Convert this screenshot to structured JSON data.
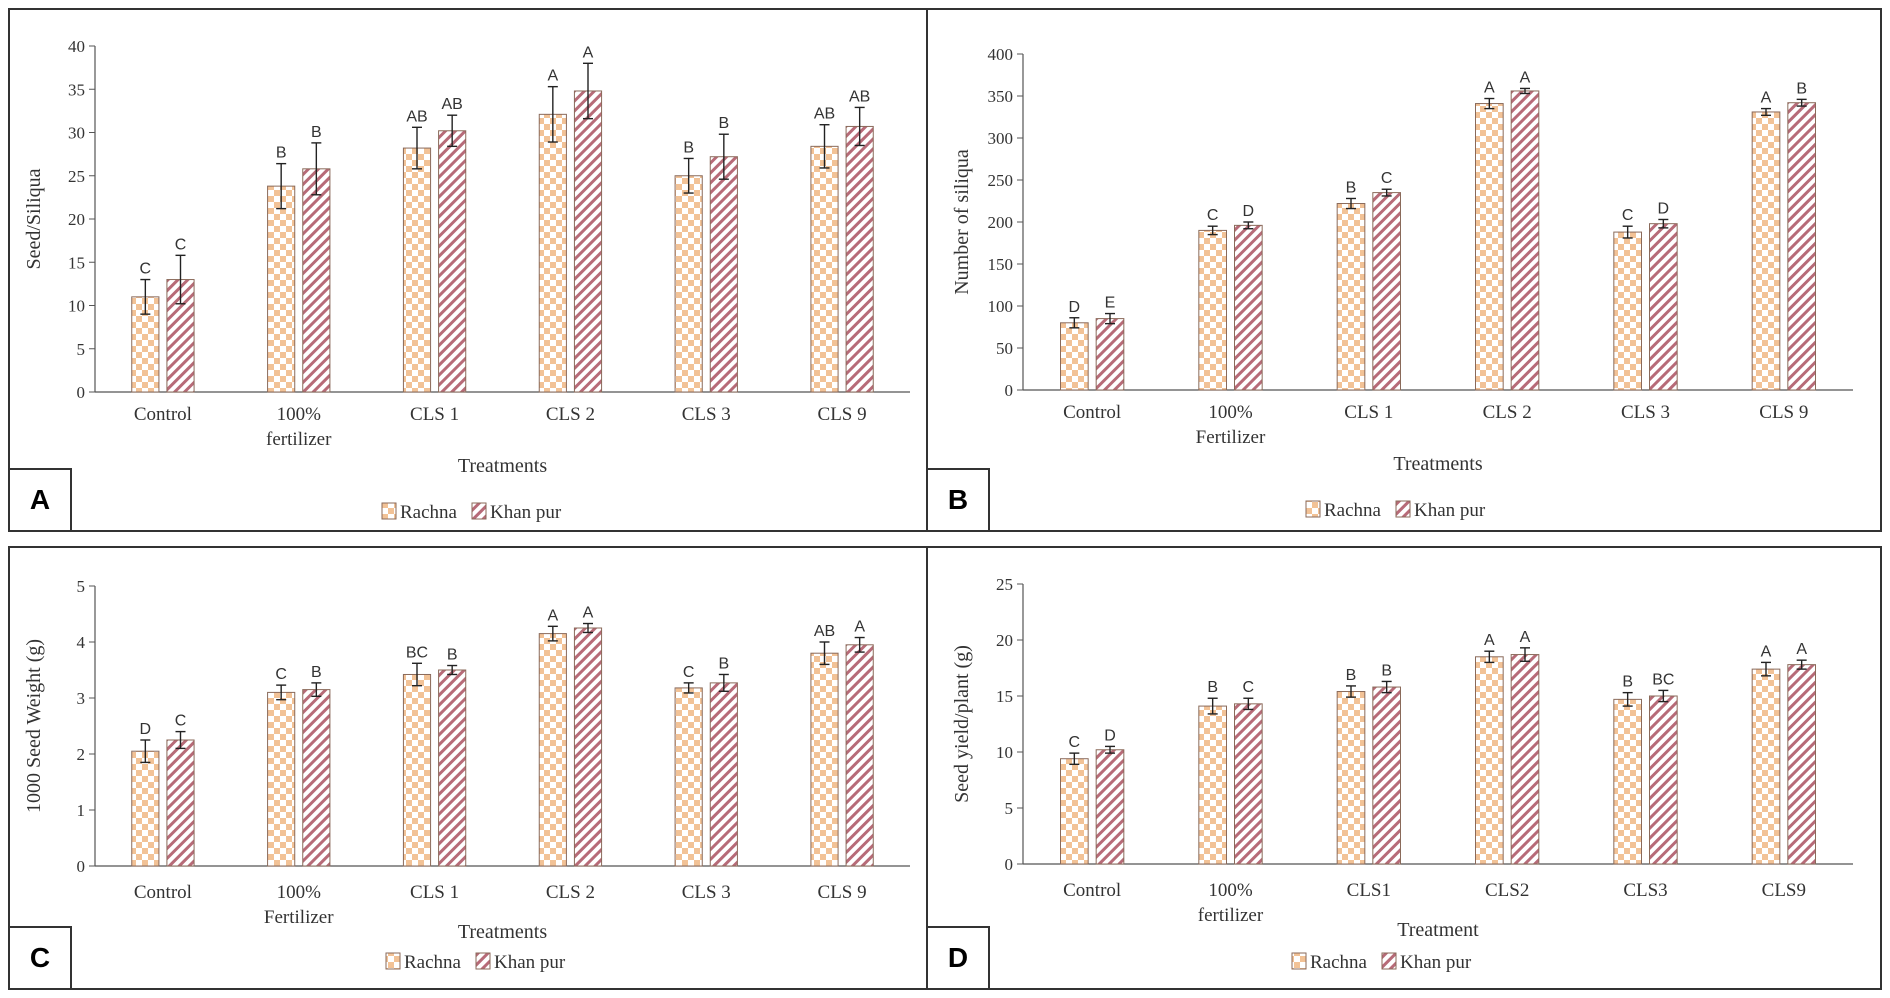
{
  "colors": {
    "rachna_check": "#f2c296",
    "khanpur_stripe": "#b76b78",
    "bar_border": "#8a6a5a",
    "axis": "#555555"
  },
  "chart_data": [
    {
      "panel": "A",
      "type": "bar",
      "ylabel": "Seed/Siliqua",
      "xlabel": "Treatments",
      "ylim": [
        0,
        40
      ],
      "ystep": 5,
      "categories": [
        "Control",
        "100%\nfertilizer",
        "CLS 1",
        "CLS 2",
        "CLS 3",
        "CLS 9"
      ],
      "legend": [
        "Rachna",
        "Khan pur"
      ],
      "series": [
        {
          "name": "Rachna",
          "values": [
            11,
            23.8,
            28.2,
            32.1,
            25,
            28.4
          ],
          "errors": [
            2,
            2.6,
            2.4,
            3.2,
            2,
            2.5
          ],
          "letters": [
            "C",
            "B",
            "AB",
            "A",
            "B",
            "AB"
          ]
        },
        {
          "name": "Khan pur",
          "values": [
            13,
            25.8,
            30.2,
            34.8,
            27.2,
            30.7
          ],
          "errors": [
            2.8,
            3,
            1.8,
            3.2,
            2.6,
            2.2
          ],
          "letters": [
            "C",
            "B",
            "AB",
            "A",
            "B",
            "AB"
          ]
        }
      ]
    },
    {
      "panel": "B",
      "type": "bar",
      "ylabel": "Number of siliqua",
      "xlabel": "Treatments",
      "ylim": [
        0,
        400
      ],
      "ystep": 50,
      "categories": [
        "Control",
        "100%\nFertilizer",
        "CLS 1",
        "CLS 2",
        "CLS 3",
        "CLS 9"
      ],
      "legend": [
        "Rachna",
        "Khan pur"
      ],
      "series": [
        {
          "name": "Rachna",
          "values": [
            80,
            190,
            222,
            341,
            188,
            331
          ],
          "errors": [
            6,
            5,
            6,
            6,
            7,
            4
          ],
          "letters": [
            "D",
            "C",
            "B",
            "A",
            "C",
            "A"
          ]
        },
        {
          "name": "Khan pur",
          "values": [
            85,
            196,
            235,
            356,
            198,
            342
          ],
          "errors": [
            6,
            4,
            4,
            3,
            5,
            4
          ],
          "letters": [
            "E",
            "D",
            "C",
            "A",
            "D",
            "B"
          ]
        }
      ]
    },
    {
      "panel": "C",
      "type": "bar",
      "ylabel": "1000 Seed Weight (g)",
      "xlabel": "Treatments",
      "ylim": [
        0,
        5
      ],
      "ystep": 1,
      "categories": [
        "Control",
        "100%\nFertilizer",
        "CLS 1",
        "CLS 2",
        "CLS 3",
        "CLS 9"
      ],
      "legend": [
        "Rachna",
        "Khan pur"
      ],
      "series": [
        {
          "name": "Rachna",
          "values": [
            2.05,
            3.1,
            3.42,
            4.15,
            3.18,
            3.8
          ],
          "errors": [
            0.2,
            0.13,
            0.2,
            0.13,
            0.09,
            0.2
          ],
          "letters": [
            "D",
            "C",
            "BC",
            "A",
            "C",
            "AB"
          ]
        },
        {
          "name": "Khan pur",
          "values": [
            2.25,
            3.15,
            3.5,
            4.25,
            3.27,
            3.95
          ],
          "errors": [
            0.15,
            0.12,
            0.08,
            0.08,
            0.15,
            0.13
          ],
          "letters": [
            "C",
            "B",
            "B",
            "A",
            "B",
            "A"
          ]
        }
      ]
    },
    {
      "panel": "D",
      "type": "bar",
      "ylabel": "Seed yield/plant (g)",
      "xlabel": "Treatment",
      "ylim": [
        0,
        25
      ],
      "ystep": 5,
      "categories": [
        "Control",
        "100%\nfertilizer",
        "CLS1",
        "CLS2",
        "CLS3",
        "CLS9"
      ],
      "legend": [
        "Rachna",
        "Khan pur"
      ],
      "series": [
        {
          "name": "Rachna",
          "values": [
            9.4,
            14.1,
            15.4,
            18.5,
            14.7,
            17.4
          ],
          "errors": [
            0.5,
            0.7,
            0.5,
            0.5,
            0.6,
            0.6
          ],
          "letters": [
            "C",
            "B",
            "B",
            "A",
            "B",
            "A"
          ]
        },
        {
          "name": "Khan pur",
          "values": [
            10.2,
            14.3,
            15.8,
            18.7,
            15.0,
            17.8
          ],
          "errors": [
            0.3,
            0.5,
            0.5,
            0.6,
            0.5,
            0.4
          ],
          "letters": [
            "D",
            "C",
            "B",
            "A",
            "BC",
            "A"
          ]
        }
      ]
    }
  ]
}
